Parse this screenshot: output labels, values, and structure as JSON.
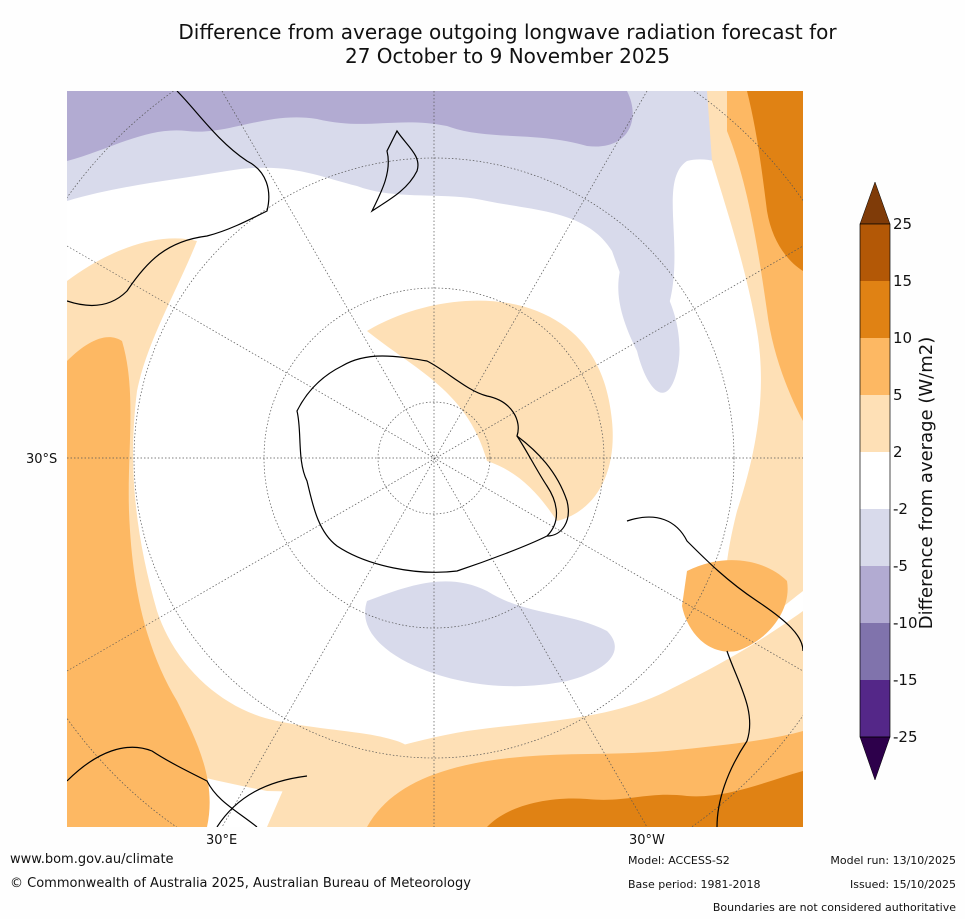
{
  "title": {
    "line1": "Difference from average outgoing longwave radiation forecast for",
    "line2": "27 October to 9 November 2025"
  },
  "map": {
    "projection": "South polar stereographic",
    "lat_labels": {
      "left": "30°S",
      "bottom_left": "30°E",
      "bottom_right": "30°W"
    }
  },
  "colorbar": {
    "label": "Difference from average (W/m2)",
    "ticks": [
      "25",
      "15",
      "10",
      "5",
      "2",
      "-2",
      "-5",
      "-10",
      "-15",
      "-25"
    ],
    "colors": {
      "above_25": "#7f3b08",
      "15_to_25": "#b35806",
      "10_to_15": "#e08214",
      "5_to_10": "#fdb863",
      "2_to_5": "#fee0b6",
      "neutral": "#ffffff",
      "m5_to_m2": "#d8daeb",
      "m10_to_m5": "#b2abd2",
      "m15_to_m10": "#8073ac",
      "m25_to_m15": "#542788",
      "below_m25": "#2d004b"
    }
  },
  "footer": {
    "website": "www.bom.gov.au/climate",
    "copyright": "© Commonwealth of Australia 2025, Australian Bureau of Meteorology",
    "model": "Model: ACCESS-S2",
    "base_period": "Base period: 1981-2018",
    "model_run": "Model run: 13/10/2025",
    "issued": "Issued: 15/10/2025",
    "disclaimer": "Boundaries are not considered authoritative"
  }
}
